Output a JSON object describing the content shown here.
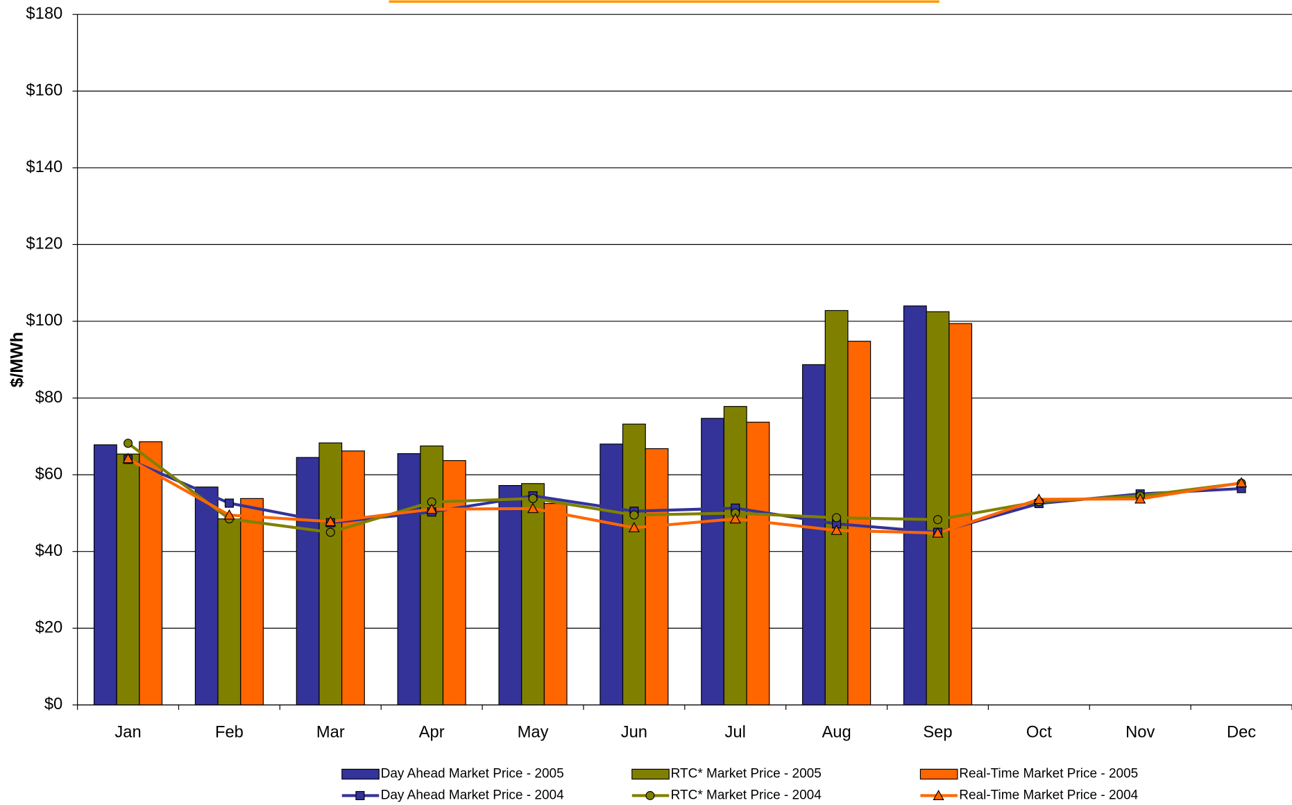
{
  "chart_data": {
    "type": "bar",
    "y_label": "$/MWh",
    "categories": [
      "Jan",
      "Feb",
      "Mar",
      "Apr",
      "May",
      "Jun",
      "Jul",
      "Aug",
      "Sep",
      "Oct",
      "Nov",
      "Dec"
    ],
    "series": [
      {
        "name": "Day Ahead Market Price - 2005",
        "type": "bar",
        "color": "#333399",
        "values": [
          67.8,
          56.8,
          64.5,
          65.5,
          57.2,
          68,
          74.7,
          88.7,
          104,
          null,
          null,
          null
        ]
      },
      {
        "name": "RTC* Market Price - 2005",
        "type": "bar",
        "color": "#808000",
        "values": [
          65.4,
          48.5,
          68.3,
          67.5,
          57.7,
          73.2,
          77.8,
          102.8,
          102.5,
          null,
          null,
          null
        ]
      },
      {
        "name": "Real-Time Market Price - 2005",
        "type": "bar",
        "color": "#FF6600",
        "values": [
          68.6,
          53.8,
          66.2,
          63.7,
          52.5,
          66.8,
          73.7,
          94.8,
          99.4,
          null,
          null,
          null
        ]
      },
      {
        "name": "Day Ahead Market Price - 2004",
        "type": "line",
        "marker": "square",
        "color": "#333399",
        "values": [
          64,
          52.6,
          47.5,
          50.3,
          54.5,
          50.5,
          51.3,
          47.2,
          45,
          52.5,
          55,
          56.4
        ]
      },
      {
        "name": "RTC* Market Price - 2004",
        "type": "line",
        "marker": "circle",
        "color": "#808000",
        "values": [
          68.2,
          48.5,
          45,
          52.9,
          53.8,
          49.5,
          50,
          48.8,
          48.3,
          53,
          54.5,
          57.8
        ]
      },
      {
        "name": "Real-Time Market Price - 2004",
        "type": "line",
        "marker": "triangle",
        "color": "#FF6600",
        "values": [
          64.2,
          49.5,
          47.8,
          51,
          51.2,
          46.2,
          48.5,
          45.5,
          44.8,
          53.6,
          53.7,
          57.9
        ]
      }
    ],
    "ylim": [
      0,
      180
    ],
    "yticks": [
      {
        "value": 0,
        "label": "$0"
      },
      {
        "value": 20,
        "label": "$20"
      },
      {
        "value": 40,
        "label": "$40"
      },
      {
        "value": 60,
        "label": "$60"
      },
      {
        "value": 80,
        "label": "$80"
      },
      {
        "value": 100,
        "label": "$100"
      },
      {
        "value": 120,
        "label": "$120"
      },
      {
        "value": 140,
        "label": "$140"
      },
      {
        "value": 160,
        "label": "$160"
      },
      {
        "value": 180,
        "label": "$180"
      }
    ],
    "grid": true
  }
}
